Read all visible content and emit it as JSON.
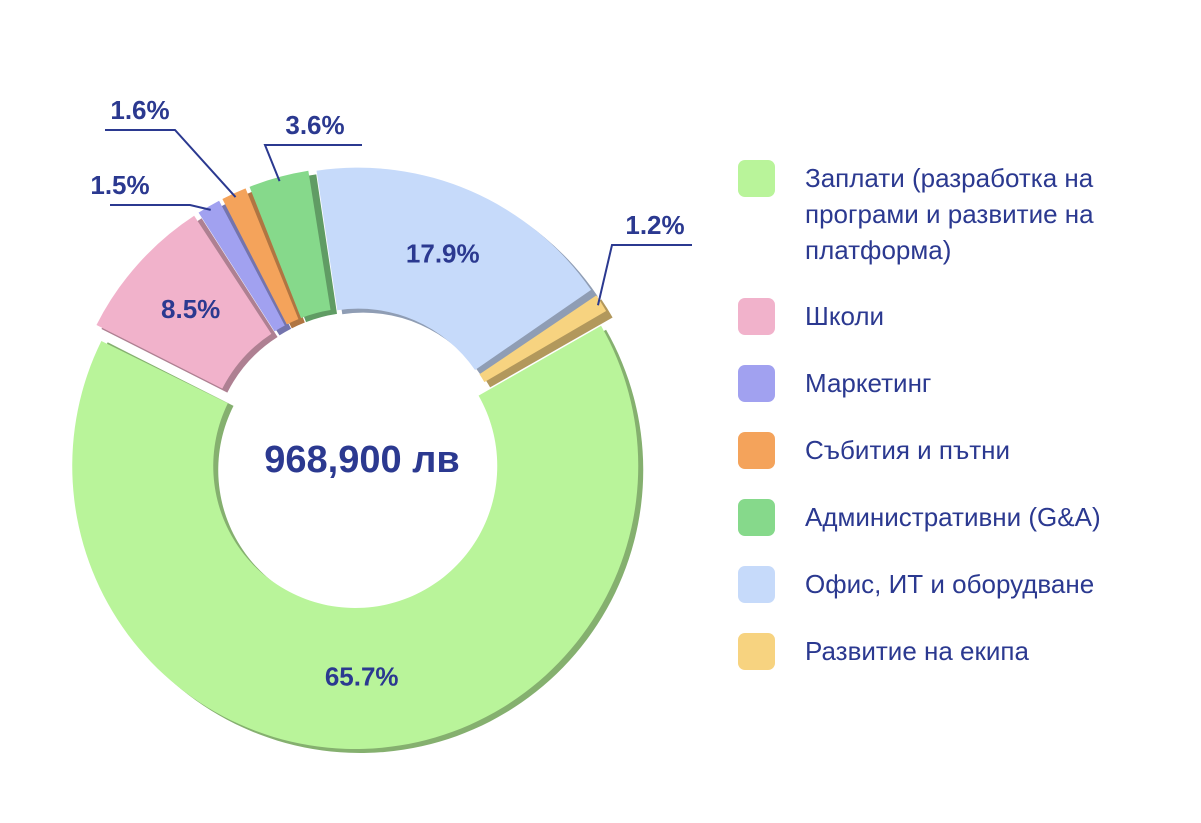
{
  "chart_data": {
    "type": "pie",
    "total_label": "968,900 лв",
    "categories": [
      "Заплати (разработка на програми и развитие на платформа)",
      "Школи",
      "Маркетинг",
      "Събития и пътни",
      "Административни (G&A)",
      "Офис, ИТ и оборудване",
      "Развитие на екипа"
    ],
    "values": [
      65.7,
      8.5,
      1.5,
      1.6,
      3.6,
      17.9,
      1.2
    ],
    "value_labels": [
      "65.7%",
      "8.5%",
      "1.5%",
      "1.6%",
      "3.6%",
      "17.9%",
      "1.2%"
    ],
    "colors": [
      "#b9f49a",
      "#f1b2cb",
      "#a1a1f0",
      "#f4a35b",
      "#86d98b",
      "#c6dafa",
      "#f7d380"
    ],
    "legend": "right"
  }
}
